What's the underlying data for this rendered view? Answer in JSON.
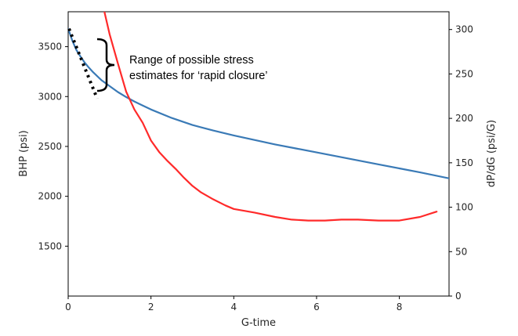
{
  "chart_data": {
    "type": "line",
    "xlabel": "G-time",
    "ylabel_left": "BHP (psi)",
    "ylabel_right": "dP/dG (psi/G)",
    "xlim": [
      0,
      9.2
    ],
    "ylim_left": [
      1000,
      3850
    ],
    "ylim_right": [
      0,
      320
    ],
    "xticks": [
      0,
      2,
      4,
      6,
      8
    ],
    "yticks_left": [
      1500,
      2000,
      2500,
      3000,
      3500
    ],
    "yticks_right": [
      0,
      50,
      100,
      150,
      200,
      250,
      300
    ],
    "grid": false,
    "series": [
      {
        "axis": "left",
        "color": "#3a7ab6",
        "x": [
          0,
          0.1,
          0.2,
          0.3,
          0.4,
          0.5,
          0.6,
          0.8,
          1.0,
          1.2,
          1.4,
          1.6,
          1.8,
          2.0,
          2.5,
          3.0,
          3.5,
          4.0,
          4.5,
          5.0,
          5.5,
          6.0,
          6.5,
          7.0,
          7.5,
          8.0,
          8.5,
          9.2
        ],
        "values": [
          3680,
          3560,
          3465,
          3400,
          3340,
          3290,
          3245,
          3165,
          3105,
          3045,
          2995,
          2950,
          2910,
          2870,
          2785,
          2715,
          2660,
          2610,
          2565,
          2520,
          2480,
          2440,
          2400,
          2360,
          2320,
          2280,
          2240,
          2180
        ]
      },
      {
        "axis": "right",
        "color": "#ff2a2a",
        "x": [
          0.85,
          1.0,
          1.2,
          1.4,
          1.6,
          1.8,
          2.0,
          2.2,
          2.4,
          2.6,
          2.8,
          3.0,
          3.2,
          3.5,
          3.8,
          4.0,
          4.5,
          5.0,
          5.4,
          5.8,
          6.2,
          6.6,
          7.0,
          7.5,
          8.0,
          8.5,
          8.9
        ],
        "values": [
          325,
          295,
          262,
          230,
          210,
          195,
          175,
          162,
          152,
          143,
          133,
          124,
          117,
          109,
          102,
          98,
          94,
          89,
          86,
          85,
          85,
          86,
          86,
          85,
          85,
          89,
          95
        ]
      }
    ],
    "overlays": [
      {
        "style": "dotted",
        "color": "#000000",
        "axis": "left",
        "x": [
          0.02,
          0.7
        ],
        "values": [
          3680,
          2980
        ]
      }
    ],
    "annotations": [
      {
        "text_lines": [
          "Range of possible stress",
          "estimates for ‘rapid closure’"
        ]
      }
    ]
  }
}
